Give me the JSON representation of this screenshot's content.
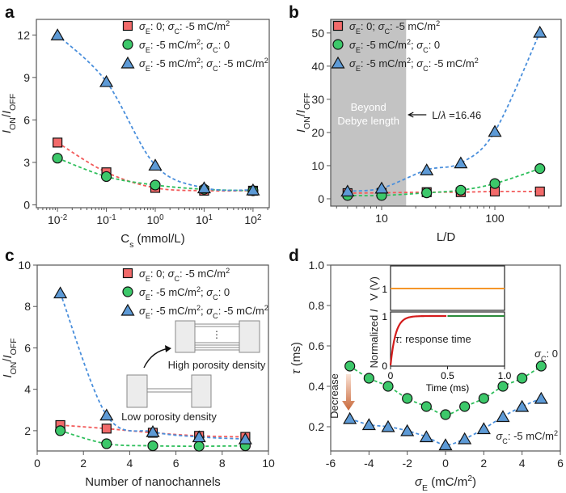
{
  "colors": {
    "red": "#f26a6a",
    "green": "#3cc86a",
    "blue": "#5d9ad6",
    "red_line": "#f25a5a",
    "green_line": "#2fbf5c",
    "blue_line": "#4a8fdc",
    "shade": "#c3c3c3",
    "orange": "#f5962a",
    "dark_red": "#d41c1c",
    "dark_green": "#2a8a3a"
  },
  "legend_labels": [
    "σ_{E}: 0; σ_{C}: -5 mC/m^{2}",
    "σ_{E}: -5 mC/m^{2}; σ_{C}: 0",
    "σ_{E}: -5 mC/m^{2}; σ_{C}: -5 mC/m^{2}"
  ],
  "chart_data": [
    {
      "panel": "a",
      "type": "scatter",
      "xscale": "log",
      "xlabel": "C_{s} (mmol/L)",
      "ylabel": "I_{ON}/I_{OFF}",
      "xlim": [
        0.0037,
        215
      ],
      "ylim": [
        -0.2,
        13.1
      ],
      "legend": "top-right",
      "xticks": [
        0.01,
        0.1,
        1,
        10,
        100
      ],
      "xticklabels": [
        "10^{-2}",
        "10^{-1}",
        "10^{0}",
        "10^{1}",
        "10^{2}"
      ],
      "yticks": [
        0,
        3,
        6,
        9,
        12
      ],
      "yticklabels": [
        "0",
        "3",
        "6",
        "9",
        "12"
      ],
      "x": [
        0.01,
        0.1,
        1,
        10,
        100
      ],
      "series": [
        {
          "marker": "square",
          "color": "red",
          "values": [
            4.4,
            2.3,
            1.2,
            1.0,
            1.0
          ]
        },
        {
          "marker": "circle",
          "color": "green",
          "values": [
            3.3,
            2.0,
            1.4,
            1.1,
            1.0
          ]
        },
        {
          "marker": "triangle",
          "color": "blue",
          "values": [
            12.0,
            8.7,
            2.8,
            1.2,
            1.05
          ]
        }
      ]
    },
    {
      "panel": "b",
      "type": "scatter",
      "xscale": "log",
      "xlabel": "L/D",
      "ylabel": "I_{ON}/I_{OFF}",
      "xlim": [
        3.55,
        385
      ],
      "ylim": [
        -2.2,
        54.1
      ],
      "legend": "top-left",
      "xticks": [
        10,
        100
      ],
      "xticklabels": [
        "10",
        "100"
      ],
      "yticks": [
        0,
        10,
        20,
        30,
        40,
        50
      ],
      "yticklabels": [
        "0",
        "10",
        "20",
        "30",
        "40",
        "50"
      ],
      "x": [
        5,
        10,
        25,
        50,
        100,
        250
      ],
      "shaded_region": {
        "x_end": 16.46,
        "label_lines": [
          "Beyond",
          "Debye length"
        ]
      },
      "annotation": "L/λ =16.46",
      "series": [
        {
          "marker": "square",
          "color": "red",
          "values": [
            1.7,
            1.8,
            2.0,
            2.0,
            2.2,
            2.2
          ]
        },
        {
          "marker": "circle",
          "color": "green",
          "values": [
            1.0,
            1.0,
            1.8,
            2.6,
            4.6,
            9.1
          ]
        },
        {
          "marker": "triangle",
          "color": "blue",
          "values": [
            2.3,
            3.2,
            8.7,
            10.8,
            20.3,
            50.2
          ]
        }
      ]
    },
    {
      "panel": "c",
      "type": "scatter",
      "xscale": "linear",
      "xlabel": "Number of nanochannels",
      "ylabel": "I_{ON}/I_{OFF}",
      "xlim": [
        0,
        10
      ],
      "ylim": [
        1.02,
        10
      ],
      "legend": "top-right",
      "xticks": [
        0,
        2,
        4,
        6,
        8,
        10
      ],
      "xticklabels": [
        "0",
        "2",
        "4",
        "6",
        "8",
        "10"
      ],
      "yticks": [
        2,
        4,
        6,
        8,
        10
      ],
      "yticklabels": [
        "2",
        "4",
        "6",
        "8",
        "10"
      ],
      "x": [
        1,
        3,
        5,
        7,
        9
      ],
      "schematic_labels": [
        "High porosity density",
        "Low porosity density"
      ],
      "series": [
        {
          "marker": "square",
          "color": "red",
          "values": [
            2.27,
            2.1,
            1.9,
            1.75,
            1.7
          ]
        },
        {
          "marker": "circle",
          "color": "green",
          "values": [
            2.0,
            1.37,
            1.27,
            1.25,
            1.27
          ]
        },
        {
          "marker": "triangle",
          "color": "blue",
          "values": [
            8.65,
            2.75,
            1.95,
            1.7,
            1.6
          ]
        }
      ]
    },
    {
      "panel": "d",
      "type": "scatter",
      "xscale": "linear",
      "xlabel": "σ_{E} (mC/m^{2})",
      "ylabel": "τ (ms)",
      "xlim": [
        -6,
        6
      ],
      "ylim": [
        0.08,
        1.0
      ],
      "xticks": [
        -6,
        -4,
        -2,
        0,
        2,
        4,
        6
      ],
      "xticklabels": [
        "-6",
        "-4",
        "-2",
        "0",
        "2",
        "4",
        "6"
      ],
      "yticks": [
        0.2,
        0.4,
        0.6,
        0.8,
        1.0
      ],
      "yticklabels": [
        "0.2",
        "0.4",
        "0.6",
        "0.8",
        "1.0"
      ],
      "x": [
        -5,
        -4,
        -3,
        -2,
        -1,
        0,
        1,
        2,
        3,
        4,
        5
      ],
      "arrow_label": "Decrease",
      "series": [
        {
          "name": "σ_{C}: 0",
          "marker": "circle",
          "color": "green",
          "values": [
            0.5,
            0.44,
            0.4,
            0.34,
            0.3,
            0.26,
            0.3,
            0.34,
            0.4,
            0.44,
            0.5
          ]
        },
        {
          "name": "σ_{C}: -5 mC/m^{2}",
          "marker": "triangle",
          "color": "blue",
          "values": [
            0.24,
            0.21,
            0.2,
            0.18,
            0.15,
            0.11,
            0.14,
            0.19,
            0.25,
            0.3,
            0.34
          ]
        }
      ],
      "inset": {
        "type": "line",
        "xlabel": "Time (ms)",
        "xlim": [
          0,
          1
        ],
        "xticklabels": [
          "0",
          "0.5",
          "1.0"
        ],
        "top": {
          "ylabel": "V (V)",
          "yticklabels": [
            "1"
          ],
          "value": 1
        },
        "bottom": {
          "ylabel": "Normalized I",
          "yticklabels": [
            "0",
            "1"
          ],
          "annotation": "τ: response time"
        }
      }
    }
  ]
}
